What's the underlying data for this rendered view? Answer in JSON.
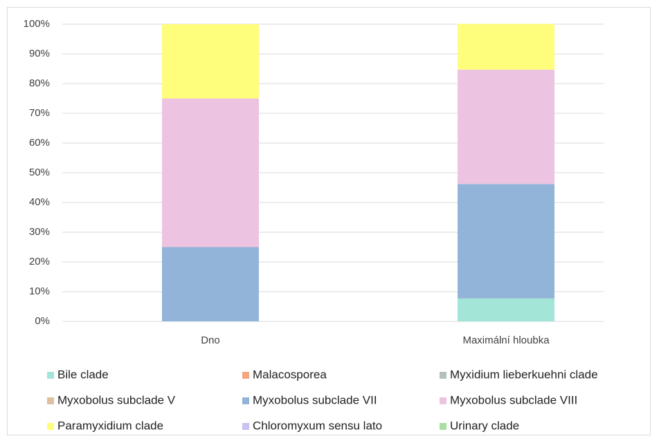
{
  "chart_data": {
    "type": "stacked_bar",
    "categories": [
      "Dno",
      "Maximální hloubka"
    ],
    "series": [
      {
        "name": "Bile clade",
        "color": "#a3e6d7",
        "values": [
          0,
          7.7
        ]
      },
      {
        "name": "Malacosporea",
        "color": "#f4a582",
        "values": [
          0,
          0
        ]
      },
      {
        "name": "Myxidium lieberkuehni clade",
        "color": "#b4c0b8",
        "values": [
          0,
          0
        ]
      },
      {
        "name": "Myxobolus subclade V",
        "color": "#dcc0a0",
        "values": [
          0,
          0
        ]
      },
      {
        "name": "Myxobolus subclade VII",
        "color": "#92b4d8",
        "values": [
          25,
          38.5
        ]
      },
      {
        "name": "Myxobolus subclade VIII",
        "color": "#ecc4e1",
        "values": [
          50,
          38.5
        ]
      },
      {
        "name": "Paramyxidium clade",
        "color": "#fffd7c",
        "values": [
          25,
          15.4
        ]
      },
      {
        "name": "Chloromyxum sensu lato",
        "color": "#cbc0f2",
        "values": [
          0,
          0
        ]
      },
      {
        "name": "Urinary clade",
        "color": "#a9e0a0",
        "values": [
          0,
          0
        ]
      }
    ],
    "ylim": [
      0,
      100
    ],
    "yticks": [
      {
        "value": 0,
        "label": "0%"
      },
      {
        "value": 10,
        "label": "10%"
      },
      {
        "value": 20,
        "label": "20%"
      },
      {
        "value": 30,
        "label": "30%"
      },
      {
        "value": 40,
        "label": "40%"
      },
      {
        "value": 50,
        "label": "50%"
      },
      {
        "value": 60,
        "label": "60%"
      },
      {
        "value": 70,
        "label": "70%"
      },
      {
        "value": 80,
        "label": "80%"
      },
      {
        "value": 90,
        "label": "90%"
      },
      {
        "value": 100,
        "label": "100%"
      }
    ],
    "grid": true,
    "legend": "bottom"
  }
}
